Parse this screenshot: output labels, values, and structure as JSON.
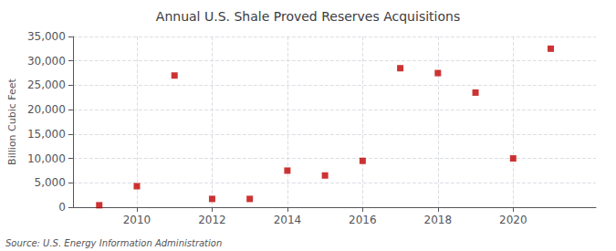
{
  "chart_data": {
    "type": "scatter",
    "title": "Annual U.S. Shale Proved Reserves Acquisitions",
    "ylabel": "Billion Cubic Feet",
    "annotations": [
      "Source: U.S. Energy Information Administration"
    ],
    "x": [
      2009,
      2010,
      2011,
      2012,
      2013,
      2014,
      2015,
      2016,
      2017,
      2018,
      2019,
      2020,
      2021
    ],
    "values": [
      400,
      4300,
      27000,
      1700,
      1700,
      7500,
      6500,
      9500,
      28500,
      27500,
      23500,
      10000,
      32500
    ],
    "color": "#c00000",
    "marker": "square",
    "xlim": [
      2008.3,
      2022.2
    ],
    "xticks": [
      2010,
      2012,
      2014,
      2016,
      2018,
      2020
    ],
    "ylim": [
      0,
      35000
    ],
    "yticks": [
      0,
      {
        "value": 5000,
        "label": "5,000"
      },
      {
        "value": 10000,
        "label": "10,000"
      },
      {
        "value": 15000,
        "label": "15,000"
      },
      {
        "value": 20000,
        "label": "20,000"
      },
      {
        "value": 25000,
        "label": "25,000"
      },
      {
        "value": 30000,
        "label": "30,000"
      },
      {
        "value": 35000,
        "label": "35,000"
      }
    ],
    "grid": true
  }
}
